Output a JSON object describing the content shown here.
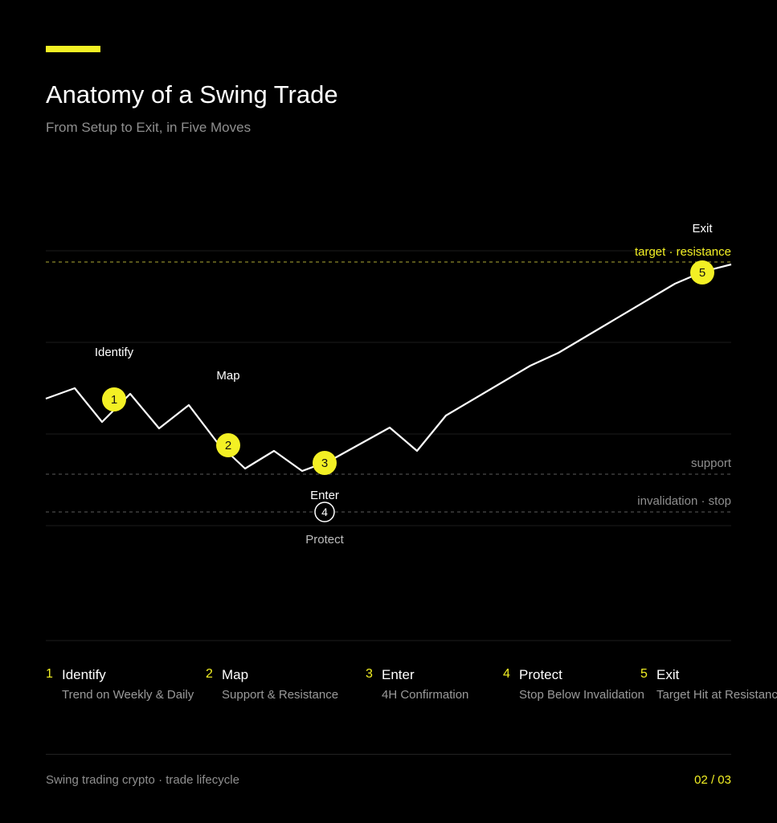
{
  "header": {
    "title": "Anatomy of a Swing Trade",
    "subtitle": "From Setup to Exit, in Five Moves",
    "accent_color": "#f3f024"
  },
  "diagram": {
    "levels": {
      "target_label": "target · resistance",
      "support_label": "support",
      "stop_label": "invalidation · stop"
    },
    "markers": [
      {
        "num": "1",
        "label": "Identify",
        "style": "filled"
      },
      {
        "num": "2",
        "label": "Map",
        "style": "filled"
      },
      {
        "num": "3",
        "label": "Enter",
        "style": "filled"
      },
      {
        "num": "4",
        "label": "Protect",
        "style": "outline"
      },
      {
        "num": "5",
        "label": "Exit",
        "style": "filled"
      }
    ]
  },
  "steps": [
    {
      "num": "1",
      "title": "Identify",
      "desc": "Trend on Weekly & Daily"
    },
    {
      "num": "2",
      "title": "Map",
      "desc": "Support & Resistance"
    },
    {
      "num": "3",
      "title": "Enter",
      "desc": "4H Confirmation"
    },
    {
      "num": "4",
      "title": "Protect",
      "desc": "Stop Below Invalidation"
    },
    {
      "num": "5",
      "title": "Exit",
      "desc": "Target Hit at Resistance"
    }
  ],
  "footer": {
    "caption": "Swing trading crypto · trade lifecycle",
    "page": "02 / 03"
  }
}
